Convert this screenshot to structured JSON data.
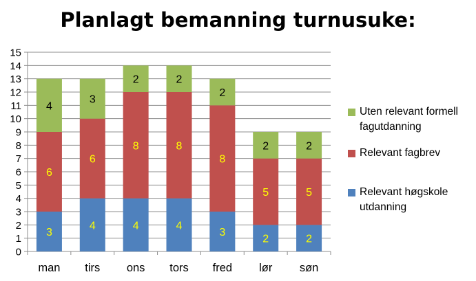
{
  "chart_data": {
    "type": "bar",
    "stacked": true,
    "title": "Planlagt bemanning turnusuke:",
    "categories": [
      "man",
      "tirs",
      "ons",
      "tors",
      "fred",
      "lør",
      "søn"
    ],
    "series": [
      {
        "name": "Relevant høgskole utdanning",
        "values": [
          3,
          4,
          4,
          4,
          3,
          2,
          2
        ],
        "color": "#4F81BD",
        "label_color": "#FFFF00"
      },
      {
        "name": "Relevant fagbrev",
        "values": [
          6,
          6,
          8,
          8,
          8,
          5,
          5
        ],
        "color": "#C0504D",
        "label_color": "#FFFF00"
      },
      {
        "name": "Uten relevant formell fagutdanning",
        "values": [
          4,
          3,
          2,
          2,
          2,
          2,
          2
        ],
        "color": "#9BBB59",
        "label_color": "#000000"
      }
    ],
    "ylim": [
      0,
      15
    ],
    "yticks": [
      0,
      1,
      2,
      3,
      4,
      5,
      6,
      7,
      8,
      9,
      10,
      11,
      12,
      13,
      14,
      15
    ],
    "grid": true,
    "legend_position": "right",
    "legend_order": [
      "Uten relevant formell fagutdanning",
      "Relevant fagbrev",
      "Relevant høgskole utdanning"
    ],
    "legend_display": [
      "Uten relevant formell\nfagutdanning",
      "Relevant fagbrev",
      "Relevant høgskole\nutdanning"
    ]
  }
}
